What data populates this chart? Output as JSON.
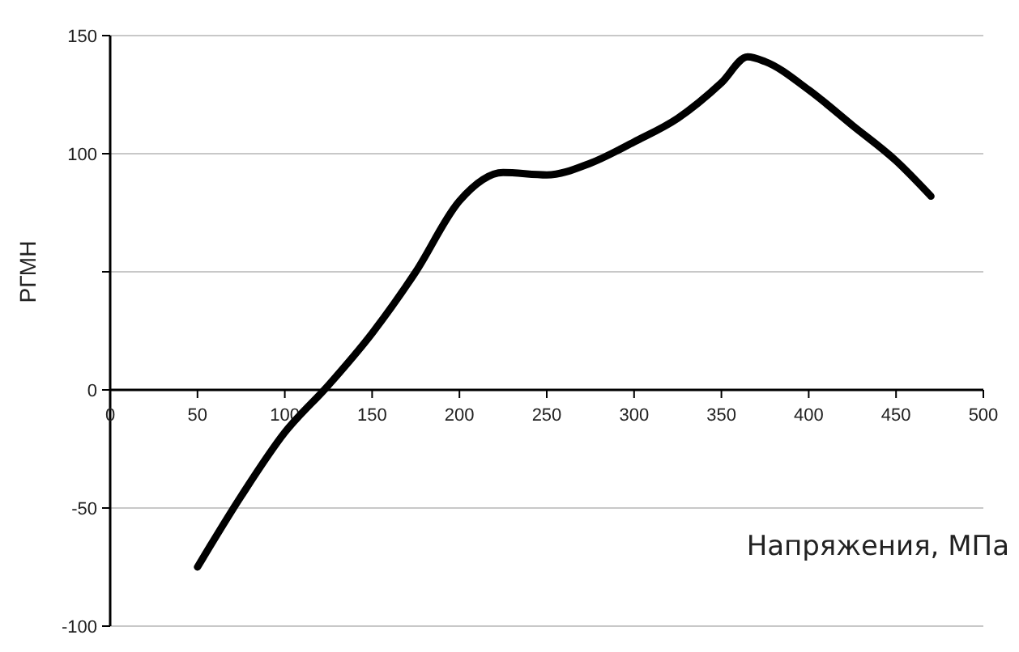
{
  "chart_data": {
    "type": "line",
    "xlabel": "Напряжения, МПа",
    "ylabel": "РГМН",
    "x": [
      50,
      75,
      100,
      125,
      150,
      175,
      200,
      225,
      250,
      275,
      300,
      325,
      350,
      365,
      375,
      400,
      425,
      450,
      470
    ],
    "series": [
      {
        "color": "#000000",
        "values": [
          -75,
          -45,
          -18,
          2,
          24,
          50,
          80,
          92,
          91,
          96,
          105,
          115,
          130,
          141,
          139,
          127,
          112,
          97,
          82
        ]
      }
    ],
    "xlim": [
      0,
      500
    ],
    "xticks": [
      0,
      50,
      100,
      150,
      200,
      250,
      300,
      350,
      400,
      450,
      500
    ],
    "ylim": [
      -100,
      150
    ],
    "yticks": [
      -100,
      -50,
      0,
      {
        "value": 50,
        "label": null
      },
      100,
      150
    ],
    "grid": "y",
    "marker": "none",
    "line_style": "solid"
  }
}
